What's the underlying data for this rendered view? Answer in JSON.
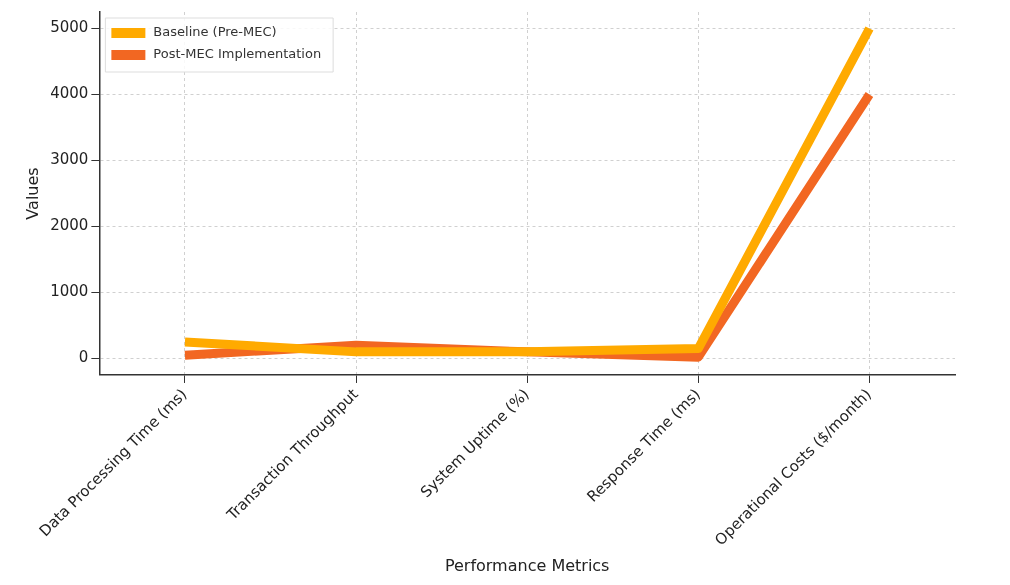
{
  "chart_data": {
    "type": "line",
    "categories": [
      "Data Processing Time (ms)",
      "Transaction Throughput",
      "System Uptime (%)",
      "Response Time (ms)",
      "Operational Costs ($/month)"
    ],
    "series": [
      {
        "name": "Baseline (Pre-MEC)",
        "color": "#ffaa00",
        "values": [
          250,
          100,
          100,
          150,
          5000
        ]
      },
      {
        "name": "Post-MEC Implementation",
        "color": "#f26722",
        "values": [
          50,
          200,
          100,
          20,
          4000
        ]
      }
    ],
    "xlabel": "Performance Metrics",
    "ylabel": "Values",
    "ylim": [
      -250,
      5250
    ],
    "yticks": [
      0,
      1000,
      2000,
      3000,
      4000,
      5000
    ],
    "grid": true,
    "legend": "top left",
    "marker": "none",
    "line_style": "solid"
  }
}
